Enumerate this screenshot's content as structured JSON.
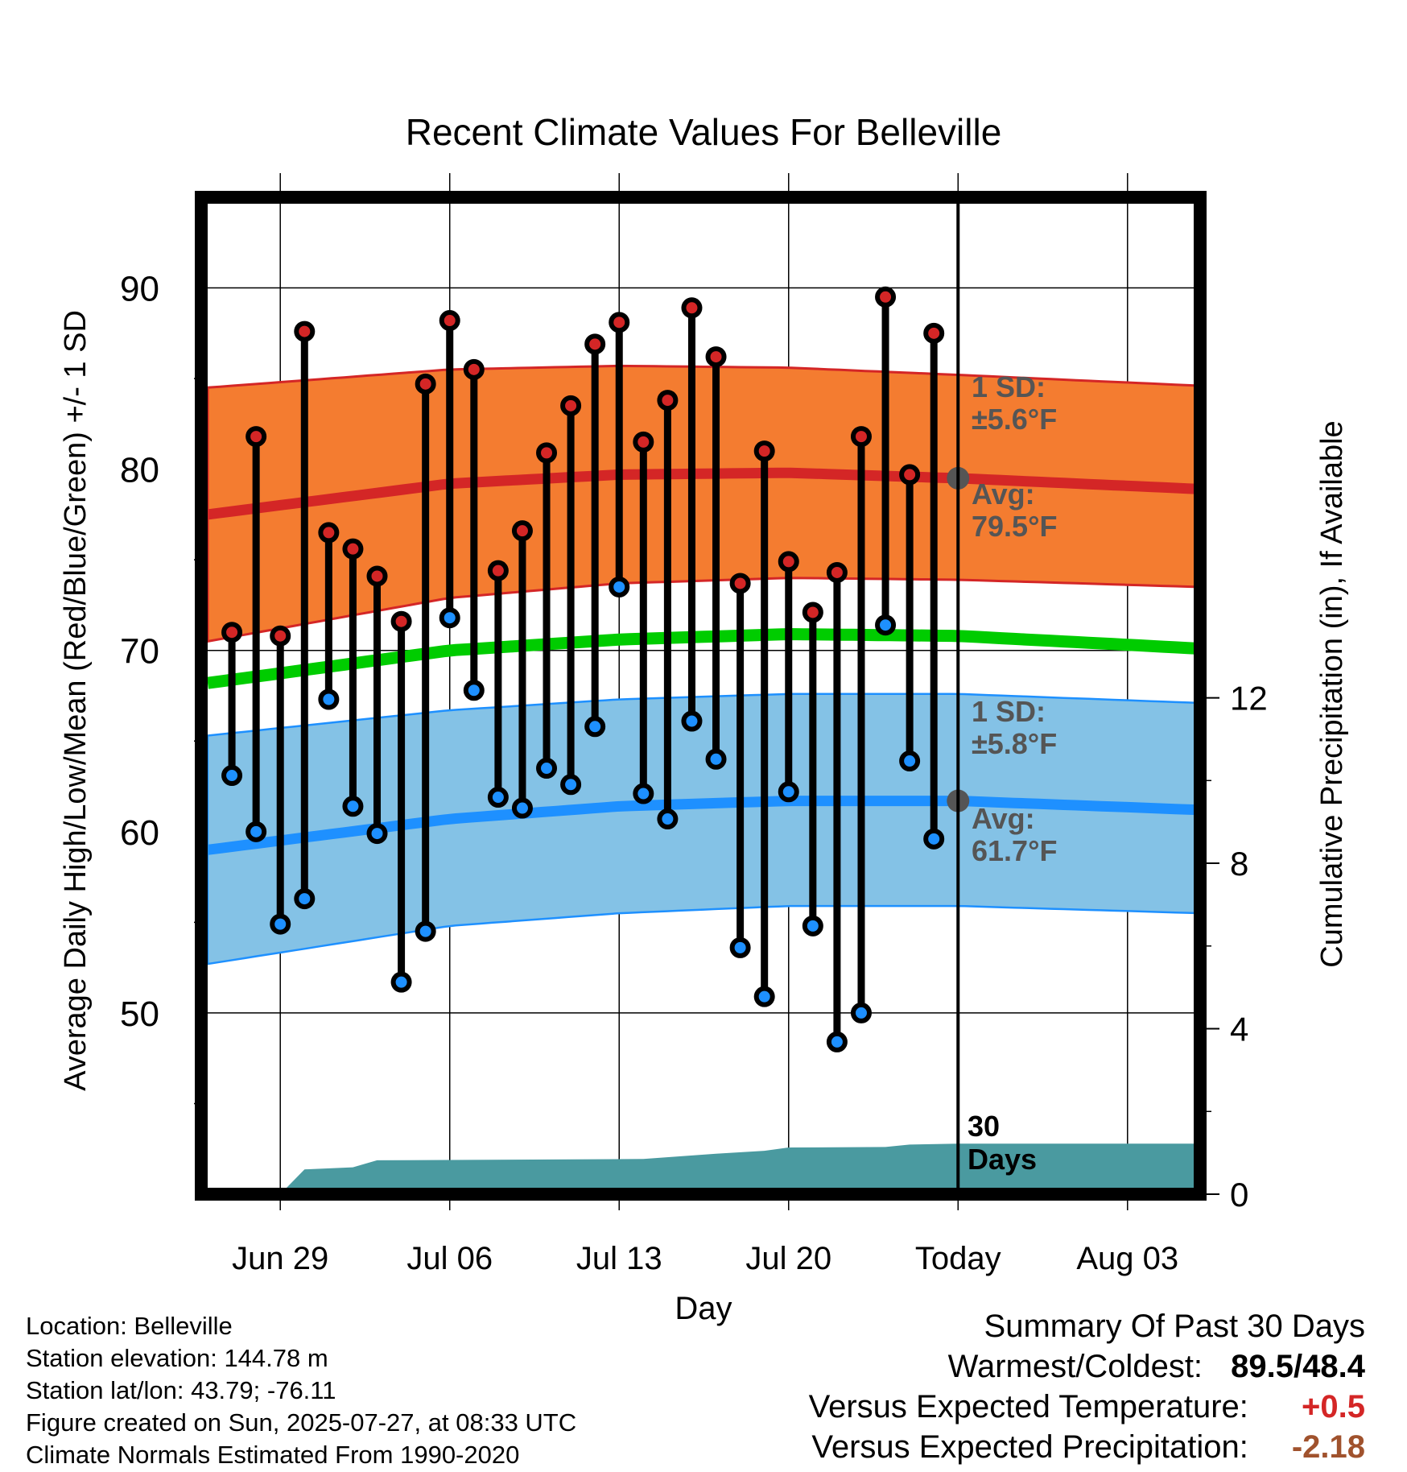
{
  "title": "Recent Climate Values For Belleville",
  "y_label_left": "Average Daily High/Low/Mean (Red/Blue/Green) +/- 1 SD",
  "y_label_right": "Cumulative Precipitation (in), If Available",
  "x_label": "Day",
  "annotations": {
    "high_sd_title": "1 SD:",
    "high_sd_value": "±5.6°F",
    "high_avg_title": "Avg:",
    "high_avg_value": "79.5°F",
    "low_sd_title": "1 SD:",
    "low_sd_value": "±5.8°F",
    "low_avg_title": "Avg:",
    "low_avg_value": "61.7°F",
    "days_line1": "30",
    "days_line2": "Days"
  },
  "footer": {
    "location": "Location: Belleville",
    "elevation": "Station elevation: 144.78 m",
    "latlon": "Station lat/lon: 43.79; -76.11",
    "created": "Figure created on Sun, 2025-07-27, at 08:33 UTC",
    "normals": "Climate Normals Estimated From 1990-2020"
  },
  "summary": {
    "title": "Summary Of Past 30 Days",
    "warm_cold_label": "Warmest/Coldest:",
    "warm_cold_value": "89.5/48.4",
    "temp_label": "Versus Expected Temperature:",
    "temp_value": "+0.5",
    "precip_label": "Versus Expected Precipitation:",
    "precip_value": "-2.18"
  },
  "colors": {
    "high_band": "#f47c30",
    "high_line": "#d42626",
    "low_band": "#84c2e6",
    "low_line": "#1e90ff",
    "mean_line": "#00cc00",
    "precip": "#4a9aa0",
    "high_marker": "#d42626",
    "low_marker": "#1e90ff",
    "temp_positive": "#d42626",
    "precip_negative": "#a0522d"
  },
  "chart_data": {
    "type": "line",
    "x_start": "2025-06-26",
    "x_end": "2025-08-06",
    "xticks": [
      {
        "date": "2025-06-29",
        "label": "Jun 29"
      },
      {
        "date": "2025-07-06",
        "label": "Jul 06"
      },
      {
        "date": "2025-07-13",
        "label": "Jul 13"
      },
      {
        "date": "2025-07-20",
        "label": "Jul 20"
      },
      {
        "date": "2025-07-27",
        "label": "Today"
      },
      {
        "date": "2025-08-03",
        "label": "Aug 03"
      }
    ],
    "today": "2025-07-27",
    "ylim_left": [
      40,
      95
    ],
    "yticks_left": [
      50,
      60,
      70,
      80,
      90
    ],
    "ylim_right": [
      0,
      24.1
    ],
    "yticks_right": [
      0,
      4,
      8,
      12
    ],
    "grid": true,
    "daily": [
      {
        "date": "2025-06-27",
        "high": 71.0,
        "low": 63.1
      },
      {
        "date": "2025-06-28",
        "high": 81.8,
        "low": 60.0
      },
      {
        "date": "2025-06-29",
        "high": 70.8,
        "low": 54.9
      },
      {
        "date": "2025-06-30",
        "high": 87.6,
        "low": 56.3
      },
      {
        "date": "2025-07-01",
        "high": 76.5,
        "low": 67.3
      },
      {
        "date": "2025-07-02",
        "high": 75.6,
        "low": 61.4
      },
      {
        "date": "2025-07-03",
        "high": 74.1,
        "low": 59.9
      },
      {
        "date": "2025-07-04",
        "high": 71.6,
        "low": 51.7
      },
      {
        "date": "2025-07-05",
        "high": 84.7,
        "low": 54.5
      },
      {
        "date": "2025-07-06",
        "high": 88.2,
        "low": 71.8
      },
      {
        "date": "2025-07-07",
        "high": 85.5,
        "low": 67.8
      },
      {
        "date": "2025-07-08",
        "high": 74.4,
        "low": 61.9
      },
      {
        "date": "2025-07-09",
        "high": 76.6,
        "low": 61.3
      },
      {
        "date": "2025-07-10",
        "high": 80.9,
        "low": 63.5
      },
      {
        "date": "2025-07-11",
        "high": 83.5,
        "low": 62.6
      },
      {
        "date": "2025-07-12",
        "high": 86.9,
        "low": 65.8
      },
      {
        "date": "2025-07-13",
        "high": 88.1,
        "low": 73.5
      },
      {
        "date": "2025-07-14",
        "high": 81.5,
        "low": 62.1
      },
      {
        "date": "2025-07-15",
        "high": 83.8,
        "low": 60.7
      },
      {
        "date": "2025-07-16",
        "high": 88.9,
        "low": 66.1
      },
      {
        "date": "2025-07-17",
        "high": 86.2,
        "low": 64.0
      },
      {
        "date": "2025-07-18",
        "high": 73.7,
        "low": 53.6
      },
      {
        "date": "2025-07-19",
        "high": 81.0,
        "low": 50.9
      },
      {
        "date": "2025-07-20",
        "high": 74.9,
        "low": 62.2
      },
      {
        "date": "2025-07-21",
        "high": 72.1,
        "low": 54.8
      },
      {
        "date": "2025-07-22",
        "high": 74.3,
        "low": 48.4
      },
      {
        "date": "2025-07-23",
        "high": 81.8,
        "low": 50.0
      },
      {
        "date": "2025-07-24",
        "high": 89.5,
        "low": 71.4
      },
      {
        "date": "2025-07-25",
        "high": 79.7,
        "low": 63.9
      },
      {
        "date": "2025-07-26",
        "high": 87.5,
        "low": 59.6
      }
    ],
    "normals": {
      "dates": [
        "2025-06-26",
        "2025-07-06",
        "2025-07-13",
        "2025-07-20",
        "2025-07-27",
        "2025-08-06"
      ],
      "high_avg": [
        77.5,
        79.2,
        79.7,
        79.8,
        79.5,
        78.9
      ],
      "high_sd_upper": [
        84.5,
        85.5,
        85.7,
        85.6,
        85.2,
        84.6
      ],
      "high_sd_lower": [
        70.5,
        72.9,
        73.7,
        74.0,
        73.9,
        73.5
      ],
      "low_avg": [
        59.0,
        60.7,
        61.4,
        61.7,
        61.7,
        61.2
      ],
      "low_sd_upper": [
        65.3,
        66.7,
        67.3,
        67.6,
        67.6,
        67.1
      ],
      "low_sd_lower": [
        52.7,
        54.8,
        55.5,
        55.9,
        55.9,
        55.5
      ],
      "mean_avg": [
        68.2,
        70.0,
        70.6,
        70.9,
        70.8,
        70.1
      ]
    },
    "precip_cumulative": [
      {
        "date": "2025-06-26",
        "value": 0.0
      },
      {
        "date": "2025-06-29",
        "value": 0.0
      },
      {
        "date": "2025-06-30",
        "value": 0.6
      },
      {
        "date": "2025-07-02",
        "value": 0.65
      },
      {
        "date": "2025-07-03",
        "value": 0.82
      },
      {
        "date": "2025-07-14",
        "value": 0.85
      },
      {
        "date": "2025-07-17",
        "value": 0.98
      },
      {
        "date": "2025-07-19",
        "value": 1.05
      },
      {
        "date": "2025-07-20",
        "value": 1.13
      },
      {
        "date": "2025-07-24",
        "value": 1.14
      },
      {
        "date": "2025-07-25",
        "value": 1.2
      },
      {
        "date": "2025-07-27",
        "value": 1.22
      },
      {
        "date": "2025-08-06",
        "value": 1.22
      }
    ]
  }
}
